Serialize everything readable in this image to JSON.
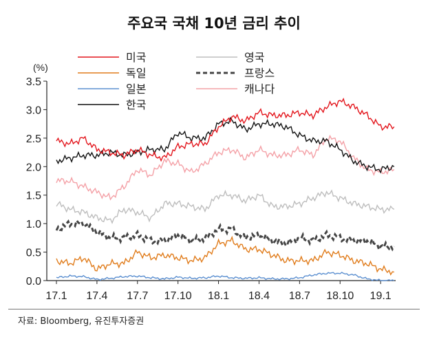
{
  "title": "주요국 국채 10년 금리 추이",
  "source": "자료: Bloomberg, 유진투자증권",
  "chart_data": {
    "type": "line",
    "title": "주요국 국채 10년 금리 추이",
    "ylabel": "(%)",
    "xlabel": "",
    "ylim": [
      0,
      3.5
    ],
    "yticks": [
      "0.0",
      "0.5",
      "1.0",
      "1.5",
      "2.0",
      "2.5",
      "3.0",
      "3.5"
    ],
    "xticks": [
      "17.1",
      "17.4",
      "17.7",
      "17.10",
      "18.1",
      "18.4",
      "18.7",
      "18.10",
      "19.1"
    ],
    "x": [
      "2017-01",
      "2017-02",
      "2017-03",
      "2017-04",
      "2017-05",
      "2017-06",
      "2017-07",
      "2017-08",
      "2017-09",
      "2017-10",
      "2017-11",
      "2017-12",
      "2018-01",
      "2018-02",
      "2018-03",
      "2018-04",
      "2018-05",
      "2018-06",
      "2018-07",
      "2018-08",
      "2018-09",
      "2018-10",
      "2018-11",
      "2018-12",
      "2019-01",
      "2019-02"
    ],
    "grid": false,
    "legend": "top-left",
    "series": [
      {
        "name": "미국",
        "color": "#e3141b",
        "dash": false,
        "values": [
          2.45,
          2.4,
          2.5,
          2.3,
          2.25,
          2.2,
          2.3,
          2.2,
          2.15,
          2.35,
          2.4,
          2.4,
          2.7,
          2.88,
          2.8,
          2.95,
          2.9,
          2.9,
          2.95,
          2.9,
          3.05,
          3.15,
          3.05,
          2.9,
          2.7,
          2.7
        ]
      },
      {
        "name": "독일",
        "color": "#e07b1a",
        "dash": false,
        "values": [
          0.35,
          0.3,
          0.4,
          0.2,
          0.3,
          0.3,
          0.5,
          0.4,
          0.45,
          0.4,
          0.35,
          0.4,
          0.65,
          0.7,
          0.55,
          0.55,
          0.45,
          0.35,
          0.35,
          0.35,
          0.5,
          0.45,
          0.35,
          0.3,
          0.2,
          0.15
        ]
      },
      {
        "name": "일본",
        "color": "#5b8fd0",
        "dash": false,
        "values": [
          0.05,
          0.08,
          0.07,
          0.02,
          0.04,
          0.07,
          0.08,
          0.05,
          0.03,
          0.06,
          0.04,
          0.05,
          0.08,
          0.05,
          0.04,
          0.05,
          0.03,
          0.03,
          0.05,
          0.1,
          0.13,
          0.13,
          0.1,
          0.03,
          0.0,
          0.0
        ]
      },
      {
        "name": "한국",
        "color": "#111111",
        "dash": false,
        "values": [
          2.1,
          2.15,
          2.2,
          2.2,
          2.25,
          2.2,
          2.25,
          2.3,
          2.3,
          2.6,
          2.5,
          2.5,
          2.75,
          2.8,
          2.65,
          2.75,
          2.75,
          2.7,
          2.55,
          2.45,
          2.45,
          2.3,
          2.1,
          2.0,
          1.95,
          2.0
        ]
      },
      {
        "name": "영국",
        "color": "#bdbdbd",
        "dash": false,
        "values": [
          1.35,
          1.25,
          1.2,
          1.1,
          1.05,
          1.25,
          1.2,
          1.1,
          1.35,
          1.35,
          1.3,
          1.25,
          1.5,
          1.5,
          1.4,
          1.5,
          1.3,
          1.3,
          1.35,
          1.45,
          1.55,
          1.45,
          1.35,
          1.3,
          1.25,
          1.25
        ]
      },
      {
        "name": "프랑스",
        "color": "#444444",
        "dash": true,
        "values": [
          0.9,
          1.0,
          1.0,
          0.85,
          0.75,
          0.75,
          0.8,
          0.7,
          0.7,
          0.8,
          0.7,
          0.75,
          0.9,
          0.9,
          0.75,
          0.8,
          0.7,
          0.65,
          0.75,
          0.7,
          0.8,
          0.75,
          0.7,
          0.7,
          0.6,
          0.6
        ]
      },
      {
        "name": "캐나다",
        "color": "#f4a0a6",
        "dash": false,
        "values": [
          1.75,
          1.75,
          1.65,
          1.55,
          1.45,
          1.65,
          1.95,
          1.85,
          2.1,
          2.05,
          1.9,
          2.05,
          2.25,
          2.3,
          2.15,
          2.3,
          2.2,
          2.2,
          2.3,
          2.2,
          2.5,
          2.45,
          2.15,
          1.95,
          1.9,
          1.95
        ]
      }
    ]
  }
}
